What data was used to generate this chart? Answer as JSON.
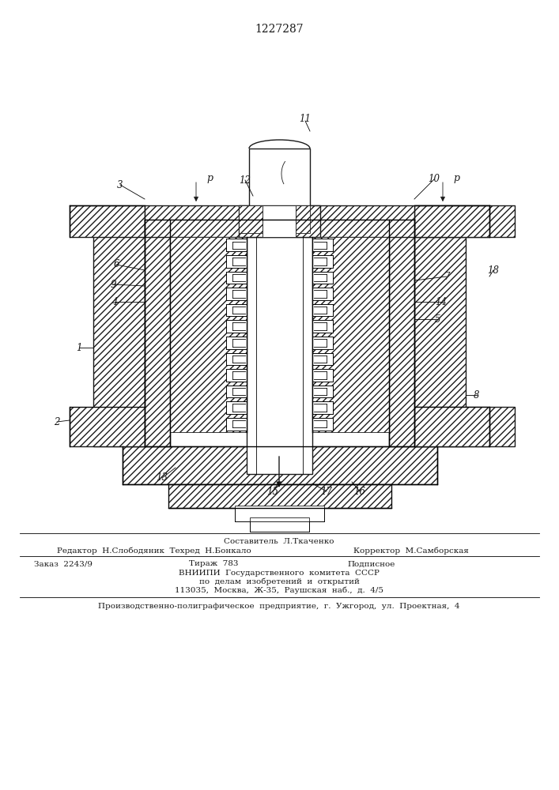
{
  "title": "1227287",
  "bg_color": "#ffffff",
  "line_color": "#1a1a1a",
  "footer": {
    "line1_center": "Составитель  Л.Ткаченко",
    "line2_left": "Редактор  Н.Слободяник  Техред  Н.Бонкало",
    "line2_right": "Корректор  М.Самборская",
    "line3_left": "Заказ  2243/9",
    "line3_center": "Тираж  783",
    "line3_right": "Подписное",
    "line4": "ВНИИПИ  Государственного  комитета  СССР",
    "line5": "по  делам  изобретений  и  открытий",
    "line6": "113035,  Москва,  Ж-35,  Раушская  наб.,  д.  4/5",
    "line7": "Производственно-полиграфическое  предприятие,  г.  Ужгород,  ул.  Проектная,  4"
  }
}
